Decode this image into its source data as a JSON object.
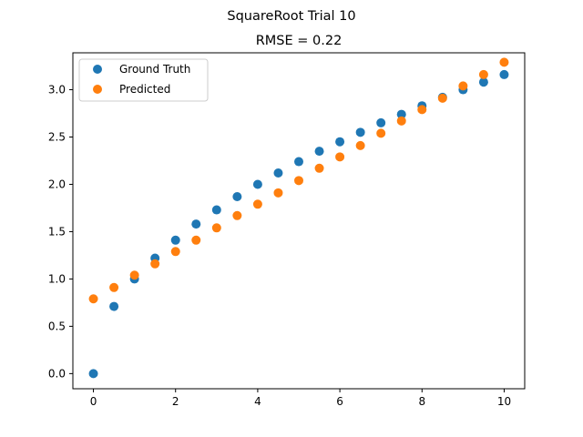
{
  "figure": {
    "suptitle": "SquareRoot Trial 10"
  },
  "chart_data": {
    "type": "scatter",
    "title": "RMSE = 0.22",
    "xlabel": "",
    "ylabel": "",
    "xlim": [
      -0.5,
      10.5
    ],
    "ylim": [
      -0.16,
      3.39
    ],
    "grid": false,
    "legend_position": "top-left",
    "x_ticks": [
      0,
      2,
      4,
      6,
      8,
      10
    ],
    "x_tick_labels": [
      "0",
      "2",
      "4",
      "6",
      "8",
      "10"
    ],
    "y_ticks": [
      0.0,
      0.5,
      1.0,
      1.5,
      2.0,
      2.5,
      3.0
    ],
    "y_tick_labels": [
      "0.0",
      "0.5",
      "1.0",
      "1.5",
      "2.0",
      "2.5",
      "3.0"
    ],
    "x": [
      0,
      0.5,
      1,
      1.5,
      2,
      2.5,
      3,
      3.5,
      4,
      4.5,
      5,
      5.5,
      6,
      6.5,
      7,
      7.5,
      8,
      8.5,
      9,
      9.5,
      10
    ],
    "series": [
      {
        "name": "Ground Truth",
        "color": "#1f77b4",
        "values": [
          0.0,
          0.71,
          1.0,
          1.22,
          1.41,
          1.58,
          1.73,
          1.87,
          2.0,
          2.12,
          2.24,
          2.35,
          2.45,
          2.55,
          2.65,
          2.74,
          2.83,
          2.92,
          3.0,
          3.08,
          3.16
        ]
      },
      {
        "name": "Predicted",
        "color": "#ff7f0e",
        "values": [
          0.79,
          0.91,
          1.04,
          1.16,
          1.29,
          1.41,
          1.54,
          1.67,
          1.79,
          1.91,
          2.04,
          2.17,
          2.29,
          2.41,
          2.54,
          2.67,
          2.79,
          2.91,
          3.04,
          3.16,
          3.29
        ]
      }
    ]
  }
}
